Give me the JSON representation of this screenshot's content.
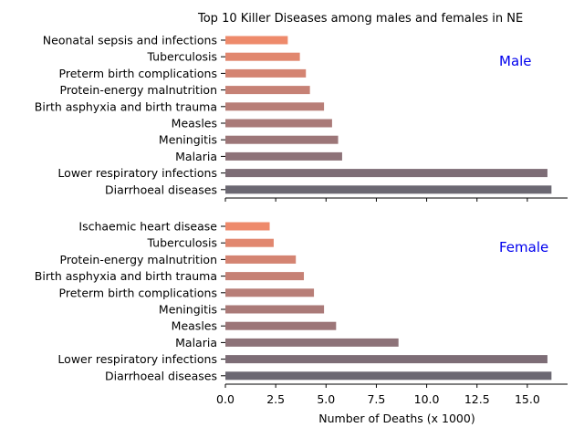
{
  "chart_data": {
    "type": "bar",
    "orientation": "horizontal",
    "title": "Top 10 Killer Diseases among males and females in NE",
    "xlabel": "Number of Deaths (x 1000)",
    "xlim": [
      0,
      17
    ],
    "xticks": [
      "0.0",
      "2.5",
      "5.0",
      "7.5",
      "10.0",
      "12.5",
      "15.0"
    ],
    "grid": false,
    "panels": [
      {
        "label": "Male",
        "categories": [
          "Neonatal sepsis and infections",
          "Tuberculosis",
          "Preterm birth complications",
          "Protein-energy malnutrition",
          "Birth asphyxia and birth trauma",
          "Measles",
          "Meningitis",
          "Malaria",
          "Lower respiratory infections",
          "Diarrhoeal diseases"
        ],
        "values": [
          3.1,
          3.7,
          4.0,
          4.2,
          4.9,
          5.3,
          5.6,
          5.8,
          16.0,
          16.2
        ],
        "colors": [
          "#ee8a6b",
          "#e1876f",
          "#d48472",
          "#c68175",
          "#b87e77",
          "#aa7a78",
          "#9c7678",
          "#8d7278",
          "#7d6d76",
          "#6b6872"
        ]
      },
      {
        "label": "Female",
        "categories": [
          "Ischaemic heart disease",
          "Tuberculosis",
          "Protein-energy malnutrition",
          "Birth asphyxia and birth trauma",
          "Preterm birth complications",
          "Meningitis",
          "Measles",
          "Malaria",
          "Lower respiratory infections",
          "Diarrhoeal diseases"
        ],
        "values": [
          2.2,
          2.4,
          3.5,
          3.9,
          4.4,
          4.9,
          5.5,
          8.6,
          16.0,
          16.2
        ],
        "colors": [
          "#ee8a6b",
          "#e1876f",
          "#d48472",
          "#c68175",
          "#b87e77",
          "#aa7a78",
          "#9c7678",
          "#8d7278",
          "#7d6d76",
          "#6b6872"
        ]
      }
    ]
  }
}
